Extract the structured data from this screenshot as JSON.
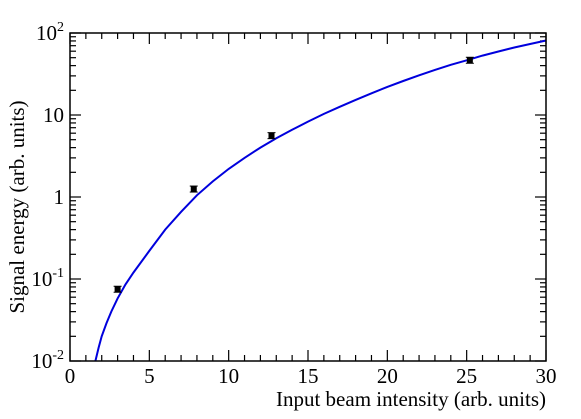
{
  "chart_data": {
    "type": "scatter",
    "title": "",
    "xlabel": "Input beam intensity (arb. units)",
    "ylabel": "Signal energy (arb. units)",
    "xlim": [
      0,
      30
    ],
    "ylim": [
      0.01,
      100
    ],
    "yscale": "log",
    "grid": false,
    "legend": "none",
    "x_ticks": [
      {
        "value": 0,
        "label": "0"
      },
      {
        "value": 5,
        "label": "5"
      },
      {
        "value": 10,
        "label": "10"
      },
      {
        "value": 15,
        "label": "15"
      },
      {
        "value": 20,
        "label": "20"
      },
      {
        "value": 25,
        "label": "25"
      },
      {
        "value": 30,
        "label": "30"
      }
    ],
    "y_ticks": [
      {
        "value": 0.01,
        "base": "10",
        "exp": "-2"
      },
      {
        "value": 0.1,
        "base": "10",
        "exp": "-1"
      },
      {
        "value": 1,
        "base": "1",
        "exp": ""
      },
      {
        "value": 10,
        "base": "10",
        "exp": ""
      },
      {
        "value": 100,
        "base": "10",
        "exp": "2"
      }
    ],
    "series": [
      {
        "kind": "points",
        "color": "#000000",
        "x": [
          3.0,
          7.8,
          12.7,
          25.2
        ],
        "y": [
          0.075,
          1.25,
          5.6,
          46.5
        ]
      },
      {
        "kind": "fit-line",
        "color": "#0000dd",
        "x": [
          1.6,
          1.8,
          2.0,
          2.3,
          2.6,
          3.0,
          3.5,
          4,
          5,
          6,
          7,
          8,
          9,
          10,
          11,
          12,
          13,
          14,
          15,
          16,
          17,
          18,
          19,
          20,
          21,
          22,
          23,
          24,
          25,
          26,
          27,
          28,
          29,
          30
        ],
        "y": [
          0.01,
          0.0145,
          0.02,
          0.029,
          0.04,
          0.058,
          0.086,
          0.12,
          0.22,
          0.4,
          0.66,
          1.05,
          1.55,
          2.2,
          3.0,
          4.0,
          5.2,
          6.6,
          8.3,
          10.3,
          12.6,
          15.3,
          18.4,
          22.0,
          26.0,
          30.5,
          35.5,
          41.0,
          46.5,
          53.0,
          59.5,
          66.5,
          73.5,
          81.0
        ]
      }
    ]
  }
}
